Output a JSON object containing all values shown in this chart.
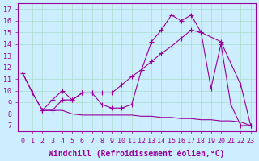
{
  "xlabel": "Windchill (Refroidissement éolien,°C)",
  "bg_color": "#cceeff",
  "line_color": "#990099",
  "grid_color": "#aaddcc",
  "xlim": [
    -0.5,
    23.5
  ],
  "ylim": [
    6.5,
    17.5
  ],
  "xticks": [
    0,
    1,
    2,
    3,
    4,
    5,
    6,
    7,
    8,
    9,
    10,
    11,
    12,
    13,
    14,
    15,
    16,
    17,
    18,
    19,
    20,
    21,
    22,
    23
  ],
  "yticks": [
    7,
    8,
    9,
    10,
    11,
    12,
    13,
    14,
    15,
    16,
    17
  ],
  "line1_x": [
    0,
    1,
    2,
    3,
    4,
    5,
    6,
    7,
    8,
    9,
    10,
    11,
    12,
    13,
    14,
    15,
    16,
    17,
    18,
    19,
    20,
    21,
    22,
    23
  ],
  "line1_y": [
    11.5,
    9.8,
    8.3,
    8.3,
    8.3,
    8.0,
    7.9,
    7.9,
    7.9,
    7.9,
    7.9,
    7.9,
    7.8,
    7.8,
    7.7,
    7.7,
    7.6,
    7.6,
    7.5,
    7.5,
    7.4,
    7.4,
    7.3,
    7.0
  ],
  "line2_x": [
    0,
    1,
    2,
    3,
    4,
    5,
    6,
    7,
    8,
    9,
    10,
    11,
    12,
    13,
    14,
    15,
    16,
    17,
    18,
    19,
    20,
    21,
    22,
    23
  ],
  "line2_y": [
    11.5,
    9.8,
    8.3,
    9.2,
    10.0,
    9.2,
    9.8,
    9.8,
    8.8,
    8.5,
    8.5,
    8.8,
    11.8,
    14.2,
    15.2,
    16.5,
    16.0,
    16.5,
    15.0,
    10.2,
    14.0,
    8.8,
    7.0,
    7.0
  ],
  "line3_x": [
    2,
    3,
    4,
    5,
    6,
    7,
    8,
    9,
    10,
    11,
    12,
    13,
    14,
    15,
    16,
    17,
    18,
    20,
    22,
    23
  ],
  "line3_y": [
    8.3,
    8.3,
    9.2,
    9.2,
    9.8,
    9.8,
    9.8,
    9.8,
    10.5,
    11.2,
    11.8,
    12.5,
    13.2,
    13.8,
    14.5,
    15.2,
    15.0,
    14.2,
    10.5,
    7.0
  ],
  "font_size_label": 7,
  "font_size_tick": 6
}
